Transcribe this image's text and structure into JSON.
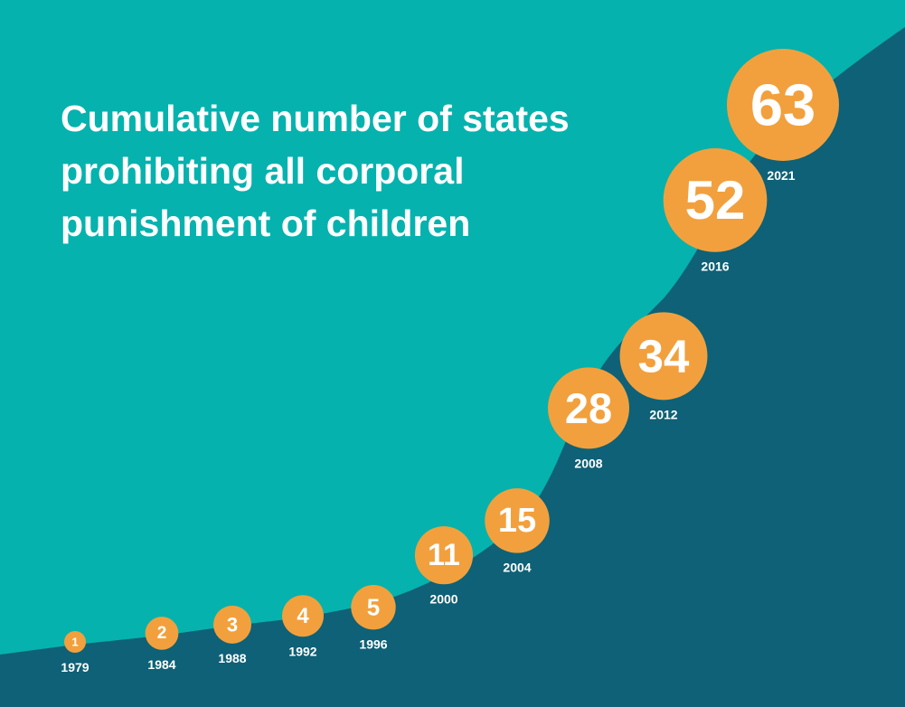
{
  "chart_data": {
    "type": "area",
    "title_lines": [
      "Cumulative number of states",
      "prohibiting all corporal",
      "punishment of children"
    ],
    "points": [
      {
        "year": "1979",
        "value": 1
      },
      {
        "year": "1984",
        "value": 2
      },
      {
        "year": "1988",
        "value": 3
      },
      {
        "year": "1992",
        "value": 4
      },
      {
        "year": "1996",
        "value": 5
      },
      {
        "year": "2000",
        "value": 11
      },
      {
        "year": "2004",
        "value": 15
      },
      {
        "year": "2008",
        "value": 28
      },
      {
        "year": "2012",
        "value": 34
      },
      {
        "year": "2016",
        "value": 52
      },
      {
        "year": "2021",
        "value": 63
      }
    ],
    "xlabel": "",
    "ylabel": "",
    "ylim": [
      0,
      63
    ],
    "grid": false,
    "legend": "none"
  },
  "colors": {
    "background": "#05b2ae",
    "area": "#0e6176",
    "bubble": "#f2a03d",
    "text": "#ffffff"
  }
}
